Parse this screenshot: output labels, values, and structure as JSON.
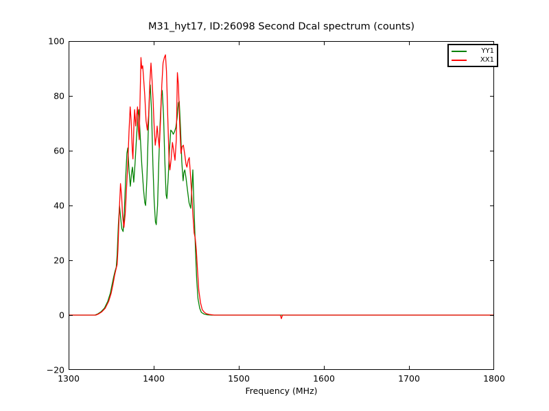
{
  "chart_data": {
    "type": "line",
    "title": "M31_hyt17, ID:26098 Second Dcal spectrum (counts)",
    "xlabel": "Frequency (MHz)",
    "ylabel": "",
    "grid": false,
    "legend_position": "upper right",
    "background_color": "#ffffff",
    "axis_color": "#000000",
    "x_axis": {
      "min": 1300,
      "max": 1800,
      "ticks": [
        1300,
        1400,
        1500,
        1600,
        1700,
        1800
      ]
    },
    "y_axis": {
      "min": -20,
      "max": 100,
      "ticks": [
        -20,
        0,
        20,
        40,
        60,
        80,
        100
      ]
    },
    "series": [
      {
        "name": "YY1",
        "color": "#008000",
        "points": [
          [
            1300,
            0
          ],
          [
            1320,
            0
          ],
          [
            1331,
            0
          ],
          [
            1334,
            0.4
          ],
          [
            1338,
            1.2
          ],
          [
            1342,
            2.5
          ],
          [
            1346,
            5
          ],
          [
            1349,
            8
          ],
          [
            1351,
            11
          ],
          [
            1353,
            14
          ],
          [
            1354.5,
            16
          ],
          [
            1356,
            17.5
          ],
          [
            1357,
            22
          ],
          [
            1358.5,
            33
          ],
          [
            1359.8,
            40
          ],
          [
            1361,
            36
          ],
          [
            1362.5,
            31.5
          ],
          [
            1364,
            30.5
          ],
          [
            1365.5,
            38
          ],
          [
            1367,
            50
          ],
          [
            1368.5,
            59
          ],
          [
            1369.5,
            61
          ],
          [
            1371,
            53
          ],
          [
            1372.5,
            47
          ],
          [
            1374,
            52
          ],
          [
            1375,
            54
          ],
          [
            1376.5,
            48.5
          ],
          [
            1378,
            55
          ],
          [
            1380,
            66
          ],
          [
            1381.5,
            73
          ],
          [
            1382.5,
            75
          ],
          [
            1384,
            66
          ],
          [
            1386,
            55
          ],
          [
            1388,
            46
          ],
          [
            1389.5,
            41
          ],
          [
            1390.5,
            40
          ],
          [
            1392,
            50
          ],
          [
            1393.5,
            66
          ],
          [
            1395,
            80
          ],
          [
            1396,
            84
          ],
          [
            1397.5,
            74
          ],
          [
            1399,
            55
          ],
          [
            1400.5,
            42
          ],
          [
            1402,
            34
          ],
          [
            1403,
            33
          ],
          [
            1404.5,
            40
          ],
          [
            1406,
            56
          ],
          [
            1407.5,
            70
          ],
          [
            1409,
            80
          ],
          [
            1410,
            82
          ],
          [
            1411.5,
            73
          ],
          [
            1413,
            57
          ],
          [
            1414.5,
            44
          ],
          [
            1415.5,
            42.5
          ],
          [
            1417,
            50
          ],
          [
            1418.5,
            60
          ],
          [
            1420,
            67.5
          ],
          [
            1421.5,
            67
          ],
          [
            1423,
            66
          ],
          [
            1424.5,
            67
          ],
          [
            1426,
            68.5
          ],
          [
            1427.5,
            72
          ],
          [
            1429,
            77.5
          ],
          [
            1430,
            78
          ],
          [
            1431.5,
            68
          ],
          [
            1433,
            56
          ],
          [
            1434.5,
            49
          ],
          [
            1435.5,
            52
          ],
          [
            1436.5,
            53
          ],
          [
            1438,
            50
          ],
          [
            1439.5,
            46
          ],
          [
            1441.5,
            41
          ],
          [
            1443.5,
            39
          ],
          [
            1445,
            47
          ],
          [
            1446,
            53
          ],
          [
            1447.5,
            38
          ],
          [
            1449,
            24
          ],
          [
            1450.5,
            13
          ],
          [
            1452,
            6
          ],
          [
            1454,
            2.5
          ],
          [
            1456,
            1
          ],
          [
            1459,
            0.4
          ],
          [
            1463,
            0.1
          ],
          [
            1468,
            0
          ],
          [
            1500,
            0
          ],
          [
            1550,
            0
          ],
          [
            1600,
            0
          ],
          [
            1650,
            0
          ],
          [
            1700,
            0
          ],
          [
            1750,
            0
          ],
          [
            1800,
            0
          ]
        ]
      },
      {
        "name": "XX1",
        "color": "#ff0000",
        "points": [
          [
            1300,
            0
          ],
          [
            1320,
            0
          ],
          [
            1332,
            0
          ],
          [
            1335,
            0.4
          ],
          [
            1339,
            1.2
          ],
          [
            1343,
            2.5
          ],
          [
            1347,
            5
          ],
          [
            1350,
            8
          ],
          [
            1352,
            11
          ],
          [
            1354,
            14.5
          ],
          [
            1355.5,
            16.5
          ],
          [
            1357,
            18.5
          ],
          [
            1358,
            24
          ],
          [
            1359.5,
            38
          ],
          [
            1361,
            48
          ],
          [
            1362.3,
            43
          ],
          [
            1363.5,
            36
          ],
          [
            1365,
            32
          ],
          [
            1366.5,
            37
          ],
          [
            1368,
            46
          ],
          [
            1369.5,
            55
          ],
          [
            1371,
            67
          ],
          [
            1372.3,
            76
          ],
          [
            1373.5,
            71
          ],
          [
            1374.8,
            60
          ],
          [
            1375.6,
            57
          ],
          [
            1376.8,
            70
          ],
          [
            1377.6,
            75
          ],
          [
            1378.8,
            69
          ],
          [
            1380,
            73
          ],
          [
            1381,
            76
          ],
          [
            1382.2,
            67
          ],
          [
            1383,
            64
          ],
          [
            1384,
            80
          ],
          [
            1385,
            94
          ],
          [
            1386,
            90
          ],
          [
            1387,
            91
          ],
          [
            1388,
            87
          ],
          [
            1389.5,
            80
          ],
          [
            1391,
            71
          ],
          [
            1392.5,
            67.5
          ],
          [
            1394,
            73
          ],
          [
            1395.5,
            85
          ],
          [
            1396.8,
            92
          ],
          [
            1398,
            86
          ],
          [
            1399.2,
            79
          ],
          [
            1400.5,
            69
          ],
          [
            1401.8,
            62
          ],
          [
            1403,
            65
          ],
          [
            1404,
            69
          ],
          [
            1405.2,
            65
          ],
          [
            1406.5,
            61
          ],
          [
            1408,
            71
          ],
          [
            1409.5,
            84
          ],
          [
            1411,
            92
          ],
          [
            1412.5,
            94
          ],
          [
            1413.8,
            95
          ],
          [
            1415,
            89
          ],
          [
            1416.5,
            72
          ],
          [
            1418,
            57
          ],
          [
            1419,
            53
          ],
          [
            1420.5,
            57
          ],
          [
            1422,
            63
          ],
          [
            1423.5,
            60
          ],
          [
            1425,
            56.5
          ],
          [
            1426.5,
            64
          ],
          [
            1427.8,
            88.5
          ],
          [
            1429,
            84
          ],
          [
            1430.5,
            70
          ],
          [
            1432,
            59
          ],
          [
            1433.5,
            61.5
          ],
          [
            1434.8,
            62
          ],
          [
            1436.5,
            58.5
          ],
          [
            1438,
            55
          ],
          [
            1439,
            54
          ],
          [
            1440.5,
            56.5
          ],
          [
            1441.8,
            57.5
          ],
          [
            1443,
            52
          ],
          [
            1444.5,
            45
          ],
          [
            1446,
            37
          ],
          [
            1447.5,
            30
          ],
          [
            1448.8,
            28
          ],
          [
            1450,
            24
          ],
          [
            1451.5,
            16
          ],
          [
            1453,
            9
          ],
          [
            1455,
            4.5
          ],
          [
            1457,
            2
          ],
          [
            1459.5,
            1
          ],
          [
            1462,
            0.5
          ],
          [
            1466,
            0.2
          ],
          [
            1471,
            0
          ],
          [
            1500,
            0
          ],
          [
            1548.8,
            0
          ],
          [
            1550,
            -1.3
          ],
          [
            1551.3,
            0
          ],
          [
            1600,
            0
          ],
          [
            1650,
            0
          ],
          [
            1700,
            0
          ],
          [
            1750,
            0
          ],
          [
            1800,
            0
          ]
        ]
      }
    ]
  }
}
